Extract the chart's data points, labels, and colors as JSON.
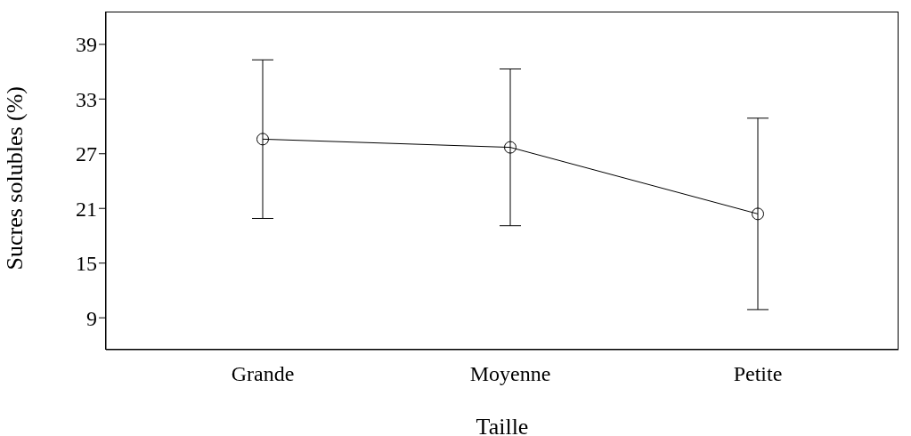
{
  "chart_data": {
    "type": "line",
    "xlabel": "Taille",
    "ylabel": "Sucres solubles (%)",
    "categories": [
      "Grande",
      "Moyenne",
      "Petite"
    ],
    "series": [
      {
        "color": "#000000",
        "values": [
          28.6,
          27.7,
          20.4
        ],
        "errors": [
          8.7,
          8.6,
          10.5
        ]
      }
    ],
    "ylim": [
      5.5,
      42.5
    ],
    "yticks": [
      9,
      15,
      21,
      27,
      33,
      39
    ],
    "grid": false,
    "marker": "circle",
    "line_style": "solid"
  }
}
